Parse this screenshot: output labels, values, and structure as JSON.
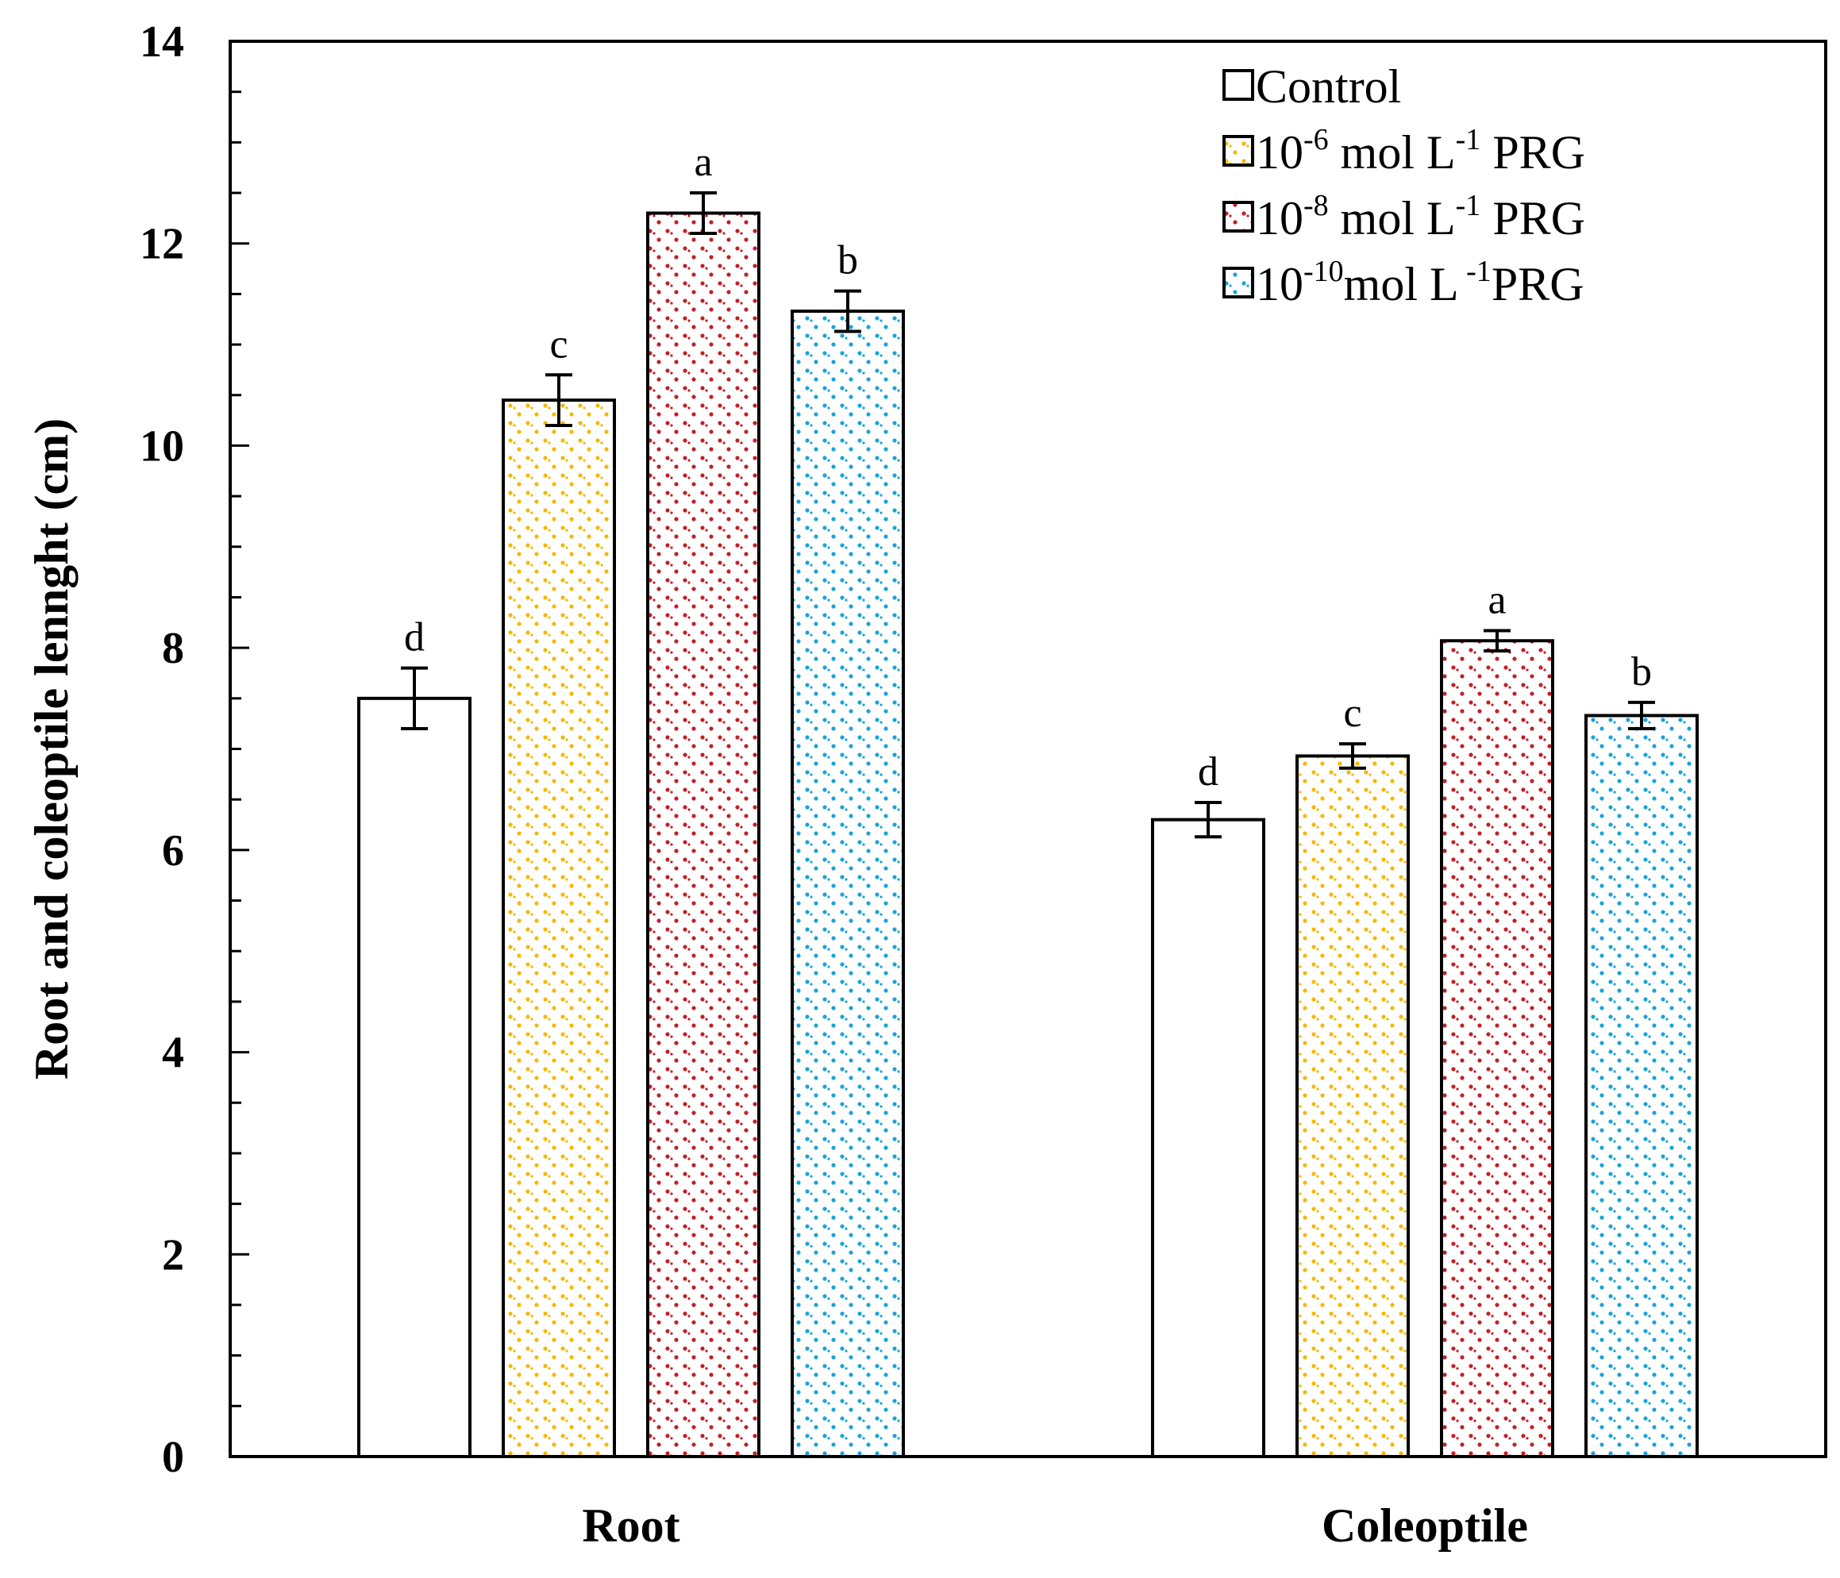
{
  "chart_data": {
    "type": "bar",
    "title": "",
    "xlabel": "",
    "ylabel": "Root and coleoptile lennght (cm)",
    "ylim": [
      0,
      14
    ],
    "y_major_ticks": [
      0,
      2,
      4,
      6,
      8,
      10,
      12,
      14
    ],
    "y_minor_step": 0.5,
    "grid": false,
    "legend_position": "top-right",
    "categories": [
      "Root",
      "Coleoptile"
    ],
    "series": [
      {
        "name": "Control",
        "legend_parts": [
          {
            "text": "Control",
            "sup": false
          }
        ],
        "color": "#000000",
        "pattern": "none",
        "values": [
          7.5,
          6.3
        ],
        "errors": [
          0.3,
          0.17
        ],
        "letters": [
          "d",
          "d"
        ]
      },
      {
        "name": "10-6 mol L-1 PRG",
        "legend_parts": [
          {
            "text": "10",
            "sup": false
          },
          {
            "text": "-6",
            "sup": true
          },
          {
            "text": " mol L",
            "sup": false
          },
          {
            "text": "-1",
            "sup": true
          },
          {
            "text": " PRG",
            "sup": false
          }
        ],
        "color": "#f5b800",
        "pattern": "dots",
        "values": [
          10.45,
          6.93
        ],
        "errors": [
          0.25,
          0.12
        ],
        "letters": [
          "c",
          "c"
        ]
      },
      {
        "name": "10-8 mol L-1 PRG",
        "legend_parts": [
          {
            "text": "10",
            "sup": false
          },
          {
            "text": "-8",
            "sup": true
          },
          {
            "text": " mol L",
            "sup": false
          },
          {
            "text": "-1",
            "sup": true
          },
          {
            "text": " PRG",
            "sup": false
          }
        ],
        "color": "#c0202a",
        "pattern": "dots",
        "values": [
          12.3,
          8.07
        ],
        "errors": [
          0.2,
          0.1
        ],
        "letters": [
          "a",
          "a"
        ]
      },
      {
        "name": "10-10mol L-1PRG",
        "legend_parts": [
          {
            "text": "10",
            "sup": false
          },
          {
            "text": "-10",
            "sup": true
          },
          {
            "text": "mol L",
            "sup": false
          },
          {
            "text": " -1",
            "sup": true
          },
          {
            "text": "PRG",
            "sup": false
          }
        ],
        "color": "#1aa3d9",
        "pattern": "dots",
        "values": [
          11.33,
          7.33
        ],
        "errors": [
          0.2,
          0.13
        ],
        "letters": [
          "b",
          "b"
        ]
      }
    ]
  }
}
